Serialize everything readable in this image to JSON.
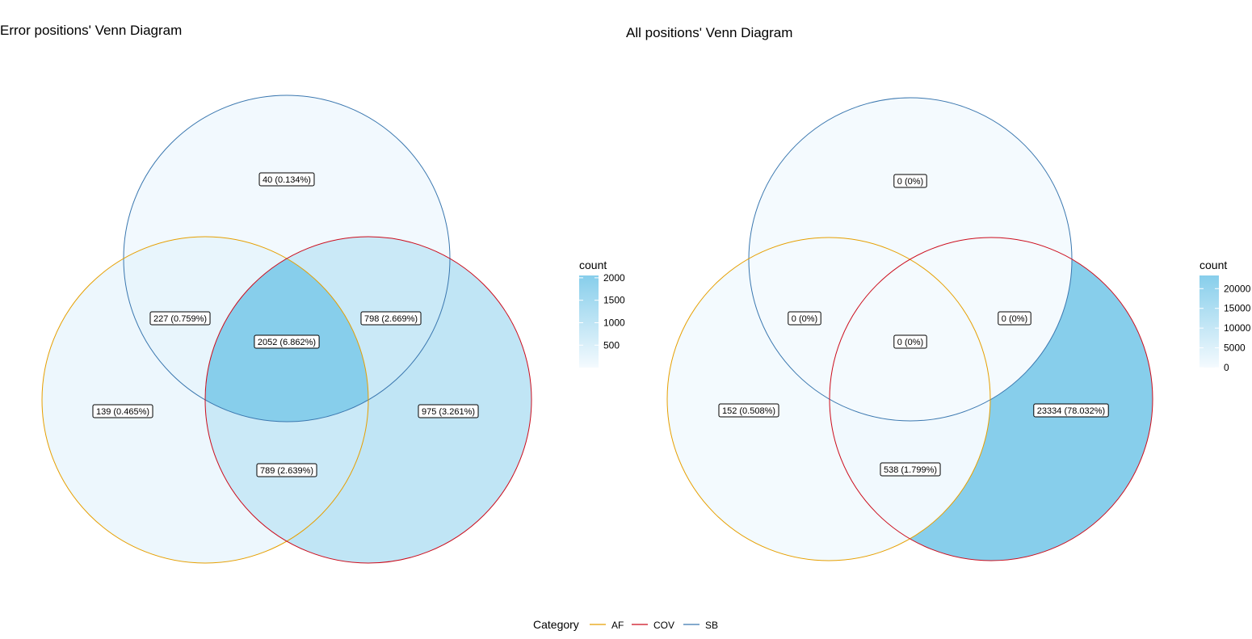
{
  "category_legend": {
    "title": "Category",
    "items": [
      {
        "name": "AF",
        "color": "#E69F00"
      },
      {
        "name": "COV",
        "color": "#CC0C1C"
      },
      {
        "name": "SB",
        "color": "#3A77AF"
      }
    ]
  },
  "colors": {
    "fill_low": "#F4FAFE",
    "fill_high": "#87CEEB"
  },
  "charts": [
    {
      "title": "Error positions' Venn Diagram",
      "legend": {
        "title": "count",
        "min": 1,
        "max": 2052,
        "ticks": [
          "500",
          "1000",
          "1500",
          "2000"
        ],
        "tick_values": [
          500,
          1000,
          1500,
          2000
        ]
      },
      "regions": [
        {
          "id": "SB_only",
          "label": "40 (0.134%)",
          "count": 40
        },
        {
          "id": "AF_SB",
          "label": "227 (0.759%)",
          "count": 227
        },
        {
          "id": "COV_SB",
          "label": "798 (2.669%)",
          "count": 798
        },
        {
          "id": "AF_COV_SB",
          "label": "2052 (6.862%)",
          "count": 2052
        },
        {
          "id": "AF_only",
          "label": "139 (0.465%)",
          "count": 139
        },
        {
          "id": "COV_only",
          "label": "975 (3.261%)",
          "count": 975
        },
        {
          "id": "AF_COV",
          "label": "789 (2.639%)",
          "count": 789
        }
      ]
    },
    {
      "title": "All positions' Venn Diagram",
      "legend": {
        "title": "count",
        "min": 0,
        "max": 23334,
        "ticks": [
          "20000",
          "15000",
          "10000",
          "5000",
          "0"
        ],
        "tick_values": [
          20000,
          15000,
          10000,
          5000,
          0
        ]
      },
      "regions": [
        {
          "id": "SB_only",
          "label": "0 (0%)",
          "count": 0
        },
        {
          "id": "AF_SB",
          "label": "0 (0%)",
          "count": 0
        },
        {
          "id": "COV_SB",
          "label": "0 (0%)",
          "count": 0
        },
        {
          "id": "AF_COV_SB",
          "label": "0 (0%)",
          "count": 0
        },
        {
          "id": "AF_only",
          "label": "152 (0.508%)",
          "count": 152
        },
        {
          "id": "COV_only",
          "label": "23334 (78.032%)",
          "count": 23334
        },
        {
          "id": "AF_COV",
          "label": "538 (1.799%)",
          "count": 538
        }
      ]
    }
  ]
}
